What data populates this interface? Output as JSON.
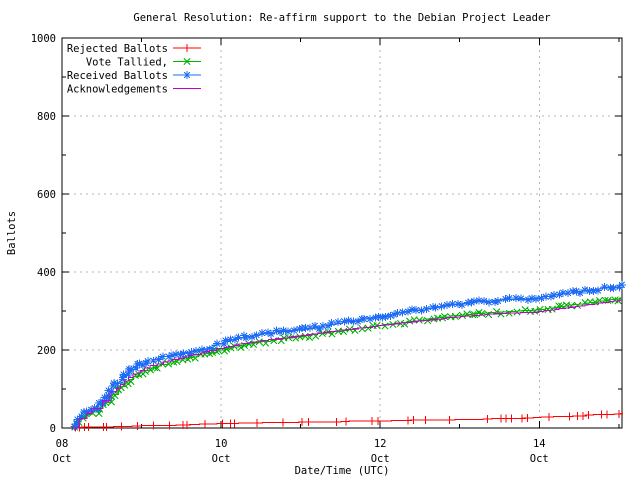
{
  "chart_data": {
    "type": "line",
    "title": "General Resolution: Re-affirm support to the Debian Project Leader",
    "xlabel": "Date/Time (UTC)",
    "ylabel": "Ballots",
    "ylim": [
      0,
      1000
    ],
    "yticks": [
      0,
      200,
      400,
      600,
      800,
      1000
    ],
    "ytick_minor_step": 100,
    "xlim_days": [
      0,
      7.04
    ],
    "xticks": [
      {
        "day": 0,
        "line1": "08",
        "line2": "Oct"
      },
      {
        "day": 2,
        "line1": "10",
        "line2": "Oct"
      },
      {
        "day": 4,
        "line1": "12",
        "line2": "Oct"
      },
      {
        "day": 6,
        "line1": "14",
        "line2": "Oct"
      }
    ],
    "xticks_minor_days": [
      1,
      3,
      5,
      7
    ],
    "grid": true,
    "legend_position": "top-left",
    "colors": {
      "grid": "#b4b4b4",
      "axis": "#000000"
    },
    "series": [
      {
        "name": "Rejected Ballots",
        "color": "#ff0000",
        "marker": "plus",
        "dense_markers": false,
        "points": [
          [
            0.17,
            1
          ],
          [
            0.22,
            1
          ],
          [
            0.28,
            2
          ],
          [
            0.33,
            2
          ],
          [
            0.52,
            3
          ],
          [
            0.56,
            3
          ],
          [
            0.75,
            4
          ],
          [
            0.95,
            5
          ],
          [
            1.15,
            6
          ],
          [
            1.35,
            7
          ],
          [
            1.52,
            8
          ],
          [
            1.57,
            8
          ],
          [
            1.8,
            10
          ],
          [
            2.02,
            11
          ],
          [
            2.12,
            12
          ],
          [
            2.17,
            12
          ],
          [
            2.45,
            13
          ],
          [
            2.78,
            14
          ],
          [
            3.02,
            15
          ],
          [
            3.1,
            15
          ],
          [
            3.45,
            16
          ],
          [
            3.57,
            17
          ],
          [
            3.9,
            18
          ],
          [
            3.97,
            18
          ],
          [
            4.35,
            19
          ],
          [
            4.42,
            20
          ],
          [
            4.57,
            20
          ],
          [
            4.87,
            21
          ],
          [
            5.35,
            23
          ],
          [
            5.52,
            24
          ],
          [
            5.58,
            24
          ],
          [
            5.65,
            25
          ],
          [
            5.78,
            25
          ],
          [
            5.85,
            26
          ],
          [
            6.12,
            28
          ],
          [
            6.38,
            30
          ],
          [
            6.48,
            31
          ],
          [
            6.55,
            31
          ],
          [
            6.62,
            33
          ],
          [
            6.78,
            34
          ],
          [
            6.85,
            35
          ],
          [
            7.0,
            36
          ]
        ],
        "extend": [
          7.04,
          37
        ]
      },
      {
        "name": "Vote Tallied,",
        "color": "#00b400",
        "marker": "cross",
        "dense_markers": true,
        "points": [
          [
            0.16,
            0
          ],
          [
            0.2,
            16
          ],
          [
            0.26,
            27
          ],
          [
            0.34,
            35
          ],
          [
            0.44,
            41
          ],
          [
            0.5,
            50
          ],
          [
            0.58,
            66
          ],
          [
            0.66,
            86
          ],
          [
            0.76,
            106
          ],
          [
            0.88,
            124
          ],
          [
            1.0,
            141
          ],
          [
            1.15,
            154
          ],
          [
            1.3,
            163
          ],
          [
            1.5,
            174
          ],
          [
            1.7,
            184
          ],
          [
            1.9,
            194
          ],
          [
            2.0,
            200
          ],
          [
            2.25,
            211
          ],
          [
            2.5,
            220
          ],
          [
            2.8,
            229
          ],
          [
            3.05,
            235
          ],
          [
            3.25,
            242
          ],
          [
            3.55,
            250
          ],
          [
            3.85,
            258
          ],
          [
            4.0,
            263
          ],
          [
            4.3,
            271
          ],
          [
            4.6,
            279
          ],
          [
            4.9,
            287
          ],
          [
            5.2,
            293
          ],
          [
            5.55,
            298
          ],
          [
            5.95,
            302
          ],
          [
            6.1,
            306
          ],
          [
            6.35,
            313
          ],
          [
            6.6,
            320
          ],
          [
            6.85,
            327
          ],
          [
            7.04,
            333
          ]
        ]
      },
      {
        "name": "Received Ballots",
        "color": "#1e6cf5",
        "marker": "asterisk",
        "dense_markers": true,
        "points": [
          [
            0.16,
            2
          ],
          [
            0.18,
            12
          ],
          [
            0.2,
            24
          ],
          [
            0.24,
            33
          ],
          [
            0.3,
            40
          ],
          [
            0.36,
            45
          ],
          [
            0.44,
            49
          ],
          [
            0.48,
            60
          ],
          [
            0.55,
            76
          ],
          [
            0.62,
            96
          ],
          [
            0.7,
            116
          ],
          [
            0.8,
            134
          ],
          [
            0.9,
            150
          ],
          [
            1.0,
            162
          ],
          [
            1.12,
            172
          ],
          [
            1.25,
            180
          ],
          [
            1.4,
            186
          ],
          [
            1.55,
            193
          ],
          [
            1.7,
            199
          ],
          [
            1.85,
            206
          ],
          [
            2.0,
            217
          ],
          [
            2.2,
            230
          ],
          [
            2.45,
            238
          ],
          [
            2.7,
            246
          ],
          [
            2.95,
            252
          ],
          [
            3.15,
            255
          ],
          [
            3.35,
            264
          ],
          [
            3.55,
            270
          ],
          [
            3.8,
            279
          ],
          [
            4.0,
            287
          ],
          [
            4.25,
            295
          ],
          [
            4.5,
            303
          ],
          [
            4.75,
            311
          ],
          [
            5.0,
            318
          ],
          [
            5.25,
            324
          ],
          [
            5.5,
            328
          ],
          [
            5.9,
            331
          ],
          [
            6.05,
            333
          ],
          [
            6.2,
            341
          ],
          [
            6.45,
            348
          ],
          [
            6.7,
            355
          ],
          [
            6.95,
            362
          ],
          [
            7.04,
            366
          ]
        ]
      },
      {
        "name": "Acknowledgements",
        "color": "#c000cc",
        "marker": "none",
        "dense_markers": false,
        "points": [
          [
            0.16,
            0
          ],
          [
            0.25,
            25
          ],
          [
            0.35,
            38
          ],
          [
            0.45,
            50
          ],
          [
            0.55,
            70
          ],
          [
            0.65,
            92
          ],
          [
            0.76,
            112
          ],
          [
            0.88,
            130
          ],
          [
            1.0,
            147
          ],
          [
            1.15,
            160
          ],
          [
            1.3,
            169
          ],
          [
            1.5,
            179
          ],
          [
            1.7,
            189
          ],
          [
            1.9,
            199
          ],
          [
            2.0,
            204
          ],
          [
            2.25,
            215
          ],
          [
            2.5,
            223
          ],
          [
            2.8,
            231
          ],
          [
            3.05,
            237
          ],
          [
            3.25,
            244
          ],
          [
            3.55,
            251
          ],
          [
            3.85,
            258
          ],
          [
            4.0,
            263
          ],
          [
            4.3,
            269
          ],
          [
            4.6,
            276
          ],
          [
            4.9,
            283
          ],
          [
            5.2,
            289
          ],
          [
            5.55,
            294
          ],
          [
            5.95,
            297
          ],
          [
            6.1,
            301
          ],
          [
            6.35,
            308
          ],
          [
            6.6,
            315
          ],
          [
            6.85,
            322
          ],
          [
            7.04,
            328
          ]
        ]
      }
    ]
  }
}
